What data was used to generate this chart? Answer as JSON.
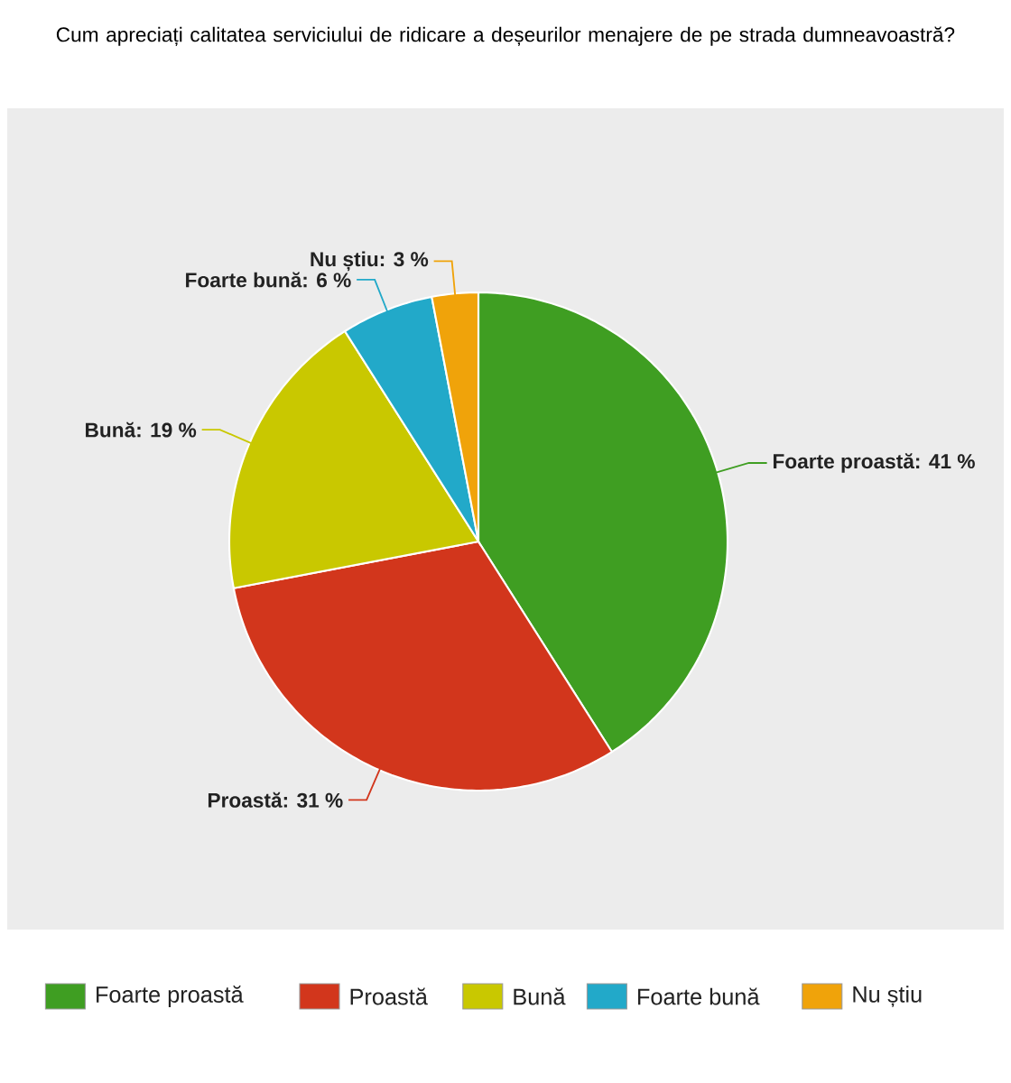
{
  "chart_data": {
    "type": "pie",
    "title": "Cum apreciați calitatea serviciului de ridicare a deșeurilor menajere de pe strada dumneavoastră?",
    "categories": [
      "Foarte proastă",
      "Proastă",
      "Bună",
      "Foarte bună",
      "Nu știu"
    ],
    "values": [
      41,
      31,
      19,
      6,
      3
    ],
    "colors": [
      "#3f9e22",
      "#d2361c",
      "#c9c800",
      "#22a9c9",
      "#f0a30a"
    ],
    "value_labels": [
      "Foarte proastă: 41 %",
      "Proastă: 31 %",
      "Bună: 19 %",
      "Foarte bună: 6 %",
      "Nu știu: 3 %"
    ],
    "legend": "bottom"
  }
}
